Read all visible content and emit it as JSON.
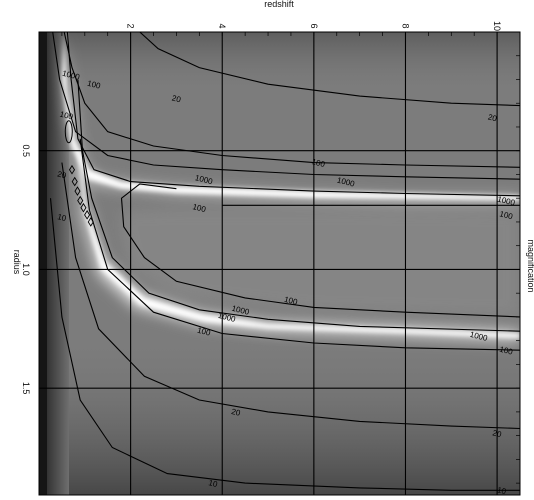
{
  "chart_data": {
    "type": "heatmap",
    "orientation": "rotated 90 degrees clockwise",
    "title": "",
    "xlabel": "redshift",
    "ylabel": "radius",
    "colorbar_label": "magnification",
    "xlim": [
      0,
      10.5
    ],
    "ylim": [
      0.0,
      1.95
    ],
    "x_ticks": [
      "2",
      "4",
      "6",
      "8",
      "10"
    ],
    "y_ticks": [
      "0.5",
      "1.0",
      "1.5"
    ],
    "x_tick_values": [
      2,
      4,
      6,
      8,
      10
    ],
    "y_tick_values": [
      0.5,
      1.0,
      1.5
    ],
    "grid": true,
    "colormap": "grayscale, white = high magnification",
    "contour_levels": [
      10,
      20,
      100,
      1000
    ],
    "contour_labels": [
      {
        "text": "20",
        "x": 3.0,
        "y": 0.28
      },
      {
        "text": "20",
        "x": 9.9,
        "y": 0.36
      },
      {
        "text": "1000",
        "x": 0.7,
        "y": 0.18
      },
      {
        "text": "100",
        "x": 1.2,
        "y": 0.22
      },
      {
        "text": "100",
        "x": 0.6,
        "y": 0.35
      },
      {
        "text": "20",
        "x": 0.5,
        "y": 0.6
      },
      {
        "text": "10",
        "x": 0.5,
        "y": 0.78
      },
      {
        "text": "100",
        "x": 6.1,
        "y": 0.55
      },
      {
        "text": "1000",
        "x": 3.6,
        "y": 0.62
      },
      {
        "text": "1000",
        "x": 6.7,
        "y": 0.63
      },
      {
        "text": "100",
        "x": 3.5,
        "y": 0.74
      },
      {
        "text": "1000",
        "x": 10.2,
        "y": 0.71
      },
      {
        "text": "100",
        "x": 10.2,
        "y": 0.77
      },
      {
        "text": "100",
        "x": 5.5,
        "y": 1.13
      },
      {
        "text": "1000",
        "x": 4.4,
        "y": 1.17
      },
      {
        "text": "1000",
        "x": 4.1,
        "y": 1.2
      },
      {
        "text": "100",
        "x": 3.6,
        "y": 1.26
      },
      {
        "text": "1000",
        "x": 9.6,
        "y": 1.28
      },
      {
        "text": "100",
        "x": 10.2,
        "y": 1.34
      },
      {
        "text": "20",
        "x": 4.3,
        "y": 1.6
      },
      {
        "text": "20",
        "x": 10.0,
        "y": 1.69
      },
      {
        "text": "10",
        "x": 3.8,
        "y": 1.9
      },
      {
        "text": "10",
        "x": 10.1,
        "y": 1.93
      }
    ]
  }
}
